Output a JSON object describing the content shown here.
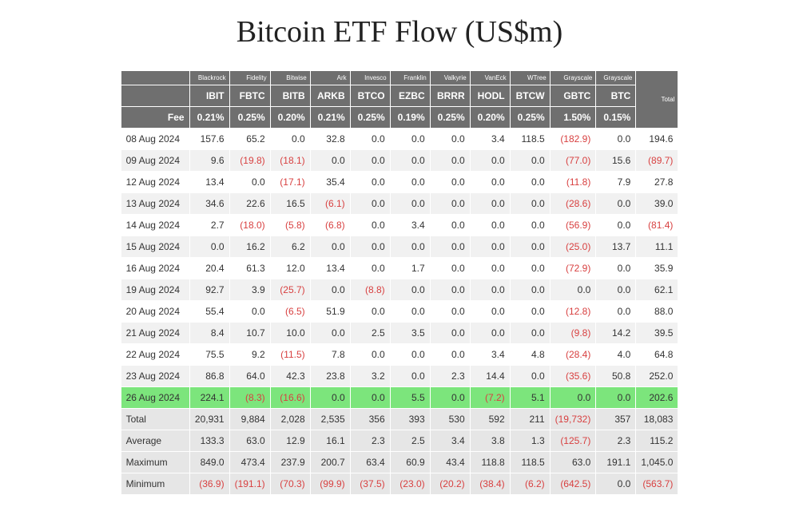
{
  "title": "Bitcoin ETF Flow (US$m)",
  "issuers": [
    "Blackrock",
    "Fidelity",
    "Bitwise",
    "Ark",
    "Invesco",
    "Franklin",
    "Valkyrie",
    "VanEck",
    "WTree",
    "Grayscale",
    "Grayscale"
  ],
  "tickers": [
    "IBIT",
    "FBTC",
    "BITB",
    "ARKB",
    "BTCO",
    "EZBC",
    "BRRR",
    "HODL",
    "BTCW",
    "GBTC",
    "BTC"
  ],
  "feeLabel": "Fee",
  "fees": [
    "0.21%",
    "0.25%",
    "0.20%",
    "0.21%",
    "0.25%",
    "0.19%",
    "0.25%",
    "0.20%",
    "0.25%",
    "1.50%",
    "0.15%"
  ],
  "totalLabel": "Total",
  "rows": [
    {
      "date": "08 Aug 2024",
      "v": [
        "157.6",
        "65.2",
        "0.0",
        "32.8",
        "0.0",
        "0.0",
        "0.0",
        "3.4",
        "118.5",
        "(182.9)",
        "0.0"
      ],
      "t": "194.6"
    },
    {
      "date": "09 Aug 2024",
      "v": [
        "9.6",
        "(19.8)",
        "(18.1)",
        "0.0",
        "0.0",
        "0.0",
        "0.0",
        "0.0",
        "0.0",
        "(77.0)",
        "15.6"
      ],
      "t": "(89.7)"
    },
    {
      "date": "12 Aug 2024",
      "v": [
        "13.4",
        "0.0",
        "(17.1)",
        "35.4",
        "0.0",
        "0.0",
        "0.0",
        "0.0",
        "0.0",
        "(11.8)",
        "7.9"
      ],
      "t": "27.8"
    },
    {
      "date": "13 Aug 2024",
      "v": [
        "34.6",
        "22.6",
        "16.5",
        "(6.1)",
        "0.0",
        "0.0",
        "0.0",
        "0.0",
        "0.0",
        "(28.6)",
        "0.0"
      ],
      "t": "39.0"
    },
    {
      "date": "14 Aug 2024",
      "v": [
        "2.7",
        "(18.0)",
        "(5.8)",
        "(6.8)",
        "0.0",
        "3.4",
        "0.0",
        "0.0",
        "0.0",
        "(56.9)",
        "0.0"
      ],
      "t": "(81.4)"
    },
    {
      "date": "15 Aug 2024",
      "v": [
        "0.0",
        "16.2",
        "6.2",
        "0.0",
        "0.0",
        "0.0",
        "0.0",
        "0.0",
        "0.0",
        "(25.0)",
        "13.7"
      ],
      "t": "11.1"
    },
    {
      "date": "16 Aug 2024",
      "v": [
        "20.4",
        "61.3",
        "12.0",
        "13.4",
        "0.0",
        "1.7",
        "0.0",
        "0.0",
        "0.0",
        "(72.9)",
        "0.0"
      ],
      "t": "35.9"
    },
    {
      "date": "19 Aug 2024",
      "v": [
        "92.7",
        "3.9",
        "(25.7)",
        "0.0",
        "(8.8)",
        "0.0",
        "0.0",
        "0.0",
        "0.0",
        "0.0",
        "0.0"
      ],
      "t": "62.1"
    },
    {
      "date": "20 Aug 2024",
      "v": [
        "55.4",
        "0.0",
        "(6.5)",
        "51.9",
        "0.0",
        "0.0",
        "0.0",
        "0.0",
        "0.0",
        "(12.8)",
        "0.0"
      ],
      "t": "88.0"
    },
    {
      "date": "21 Aug 2024",
      "v": [
        "8.4",
        "10.7",
        "10.0",
        "0.0",
        "2.5",
        "3.5",
        "0.0",
        "0.0",
        "0.0",
        "(9.8)",
        "14.2"
      ],
      "t": "39.5"
    },
    {
      "date": "22 Aug 2024",
      "v": [
        "75.5",
        "9.2",
        "(11.5)",
        "7.8",
        "0.0",
        "0.0",
        "0.0",
        "3.4",
        "4.8",
        "(28.4)",
        "4.0"
      ],
      "t": "64.8"
    },
    {
      "date": "23 Aug 2024",
      "v": [
        "86.8",
        "64.0",
        "42.3",
        "23.8",
        "3.2",
        "0.0",
        "2.3",
        "14.4",
        "0.0",
        "(35.6)",
        "50.8"
      ],
      "t": "252.0"
    },
    {
      "date": "26 Aug 2024",
      "v": [
        "224.1",
        "(8.3)",
        "(16.6)",
        "0.0",
        "0.0",
        "5.5",
        "0.0",
        "(7.2)",
        "5.1",
        "0.0",
        "0.0"
      ],
      "t": "202.6",
      "hl": true
    }
  ],
  "summary": [
    {
      "label": "Total",
      "v": [
        "20,931",
        "9,884",
        "2,028",
        "2,535",
        "356",
        "393",
        "530",
        "592",
        "211",
        "(19,732)",
        "357"
      ],
      "t": "18,083"
    },
    {
      "label": "Average",
      "v": [
        "133.3",
        "63.0",
        "12.9",
        "16.1",
        "2.3",
        "2.5",
        "3.4",
        "3.8",
        "1.3",
        "(125.7)",
        "2.3"
      ],
      "t": "115.2"
    },
    {
      "label": "Maximum",
      "v": [
        "849.0",
        "473.4",
        "237.9",
        "200.7",
        "63.4",
        "60.9",
        "43.4",
        "118.8",
        "118.5",
        "63.0",
        "191.1"
      ],
      "t": "1,045.0"
    },
    {
      "label": "Minimum",
      "v": [
        "(36.9)",
        "(191.1)",
        "(70.3)",
        "(99.9)",
        "(37.5)",
        "(23.0)",
        "(20.2)",
        "(38.4)",
        "(6.2)",
        "(642.5)",
        "0.0"
      ],
      "t": "(563.7)"
    }
  ],
  "style": {
    "type": "table",
    "background_color": "#ffffff",
    "header_bg": "#6f6f6f",
    "header_fg": "#ffffff",
    "row_odd_bg": "#ffffff",
    "row_even_bg": "#f1f1f1",
    "highlight_bg": "#7ce57c",
    "summary_bg": "#e6e6e6",
    "negative_color": "#d84040",
    "text_color": "#333333",
    "title_fontsize": 38,
    "title_font": "Georgia",
    "body_fontsize": 12,
    "issuer_fontsize": 8,
    "col_width_date": 86,
    "col_width_val": 50,
    "col_width_total": 52
  }
}
